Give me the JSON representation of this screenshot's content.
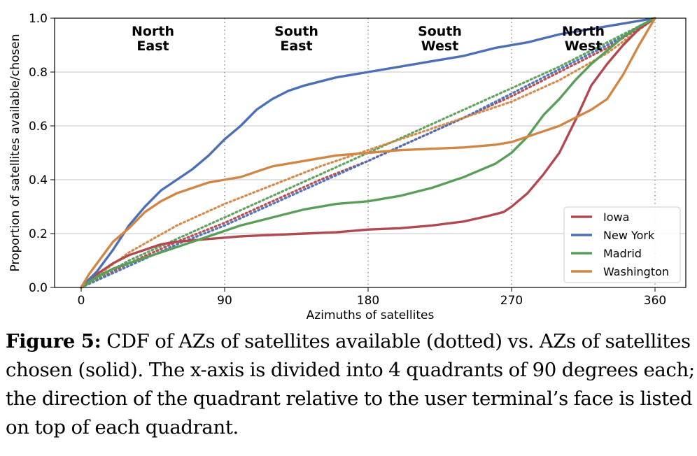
{
  "chart_data": {
    "type": "line",
    "xlabel": "Azimuths of satellites",
    "ylabel": "Proportion of satellites available/chosen",
    "xlim": [
      0,
      360
    ],
    "ylim": [
      0,
      1.0
    ],
    "xticks": [
      0,
      90,
      180,
      270,
      360
    ],
    "xtick_labels": [
      "0",
      "90",
      "180",
      "270",
      "360"
    ],
    "yticks": [
      0.0,
      0.2,
      0.4,
      0.6,
      0.8,
      1.0
    ],
    "ytick_labels": [
      "0.0",
      "0.2",
      "0.4",
      "0.6",
      "0.8",
      "1.0"
    ],
    "grid": "horizontal",
    "quadrant_dividers": [
      90,
      180,
      270,
      360
    ],
    "quadrants": [
      {
        "line1": "North",
        "line2": "East",
        "x_center": 45
      },
      {
        "line1": "South",
        "line2": "East",
        "x_center": 135
      },
      {
        "line1": "South",
        "line2": "West",
        "x_center": 225
      },
      {
        "line1": "North",
        "line2": "West",
        "x_center": 315
      }
    ],
    "legend_position": "lower-right",
    "series": [
      {
        "name": "Iowa",
        "color": "#b04a50",
        "chosen": {
          "x": [
            0,
            10,
            20,
            30,
            40,
            50,
            60,
            70,
            80,
            90,
            100,
            120,
            140,
            160,
            180,
            200,
            220,
            240,
            255,
            265,
            270,
            280,
            290,
            300,
            310,
            320,
            330,
            340,
            350,
            360
          ],
          "y": [
            0,
            0.05,
            0.09,
            0.12,
            0.14,
            0.16,
            0.17,
            0.175,
            0.18,
            0.185,
            0.19,
            0.195,
            0.2,
            0.205,
            0.215,
            0.22,
            0.23,
            0.245,
            0.265,
            0.28,
            0.3,
            0.35,
            0.42,
            0.5,
            0.62,
            0.75,
            0.83,
            0.9,
            0.96,
            1.0
          ]
        },
        "available": {
          "x": [
            0,
            30,
            60,
            90,
            120,
            150,
            180,
            210,
            240,
            270,
            300,
            330,
            360
          ],
          "y": [
            0,
            0.09,
            0.17,
            0.24,
            0.32,
            0.4,
            0.47,
            0.55,
            0.63,
            0.71,
            0.8,
            0.89,
            1.0
          ]
        }
      },
      {
        "name": "New York",
        "color": "#4c6fb5",
        "chosen": {
          "x": [
            0,
            10,
            20,
            30,
            40,
            50,
            60,
            70,
            80,
            90,
            100,
            110,
            120,
            130,
            140,
            160,
            180,
            200,
            220,
            240,
            260,
            280,
            300,
            320,
            340,
            360
          ],
          "y": [
            0,
            0.06,
            0.14,
            0.23,
            0.3,
            0.36,
            0.4,
            0.44,
            0.49,
            0.55,
            0.6,
            0.66,
            0.7,
            0.73,
            0.75,
            0.78,
            0.8,
            0.82,
            0.84,
            0.86,
            0.89,
            0.91,
            0.94,
            0.96,
            0.98,
            1.0
          ]
        },
        "available": {
          "x": [
            0,
            30,
            60,
            90,
            120,
            150,
            180,
            210,
            240,
            270,
            300,
            330,
            360
          ],
          "y": [
            0,
            0.08,
            0.16,
            0.23,
            0.31,
            0.39,
            0.47,
            0.55,
            0.63,
            0.72,
            0.81,
            0.9,
            1.0
          ]
        }
      },
      {
        "name": "Madrid",
        "color": "#5a9e5a",
        "chosen": {
          "x": [
            0,
            10,
            20,
            30,
            40,
            50,
            60,
            70,
            80,
            90,
            100,
            120,
            140,
            160,
            180,
            200,
            220,
            240,
            260,
            270,
            280,
            290,
            300,
            310,
            320,
            330,
            340,
            350,
            360
          ],
          "y": [
            0,
            0.04,
            0.07,
            0.09,
            0.11,
            0.13,
            0.15,
            0.17,
            0.19,
            0.21,
            0.23,
            0.26,
            0.29,
            0.31,
            0.32,
            0.34,
            0.37,
            0.41,
            0.46,
            0.5,
            0.56,
            0.64,
            0.7,
            0.77,
            0.83,
            0.88,
            0.93,
            0.97,
            1.0
          ]
        },
        "available": {
          "x": [
            0,
            30,
            60,
            90,
            120,
            150,
            180,
            210,
            240,
            270,
            300,
            330,
            360
          ],
          "y": [
            0,
            0.1,
            0.18,
            0.26,
            0.34,
            0.42,
            0.5,
            0.58,
            0.66,
            0.74,
            0.82,
            0.91,
            1.0
          ]
        }
      },
      {
        "name": "Washington",
        "color": "#d08745",
        "chosen": {
          "x": [
            0,
            5,
            10,
            15,
            20,
            30,
            40,
            50,
            60,
            70,
            80,
            90,
            100,
            110,
            120,
            140,
            160,
            180,
            200,
            220,
            240,
            260,
            270,
            280,
            290,
            300,
            310,
            320,
            330,
            340,
            350,
            360
          ],
          "y": [
            0,
            0.05,
            0.09,
            0.13,
            0.17,
            0.22,
            0.28,
            0.32,
            0.35,
            0.37,
            0.39,
            0.4,
            0.41,
            0.43,
            0.45,
            0.47,
            0.49,
            0.5,
            0.51,
            0.515,
            0.52,
            0.53,
            0.54,
            0.56,
            0.58,
            0.6,
            0.63,
            0.66,
            0.7,
            0.79,
            0.9,
            1.0
          ]
        },
        "available": {
          "x": [
            0,
            30,
            60,
            90,
            120,
            150,
            180,
            210,
            240,
            270,
            300,
            330,
            360
          ],
          "y": [
            0,
            0.13,
            0.23,
            0.31,
            0.38,
            0.45,
            0.51,
            0.57,
            0.63,
            0.69,
            0.77,
            0.87,
            1.0
          ]
        }
      }
    ]
  },
  "caption": {
    "label": "Figure 5:",
    "text": " CDF of AZs of satellites available (dotted) vs. AZs of satellites chosen (solid). The x-axis is divided into 4 quadrants of 90 degrees each; the direction of the quadrant relative to the user terminal’s face is listed on top of each quadrant."
  }
}
